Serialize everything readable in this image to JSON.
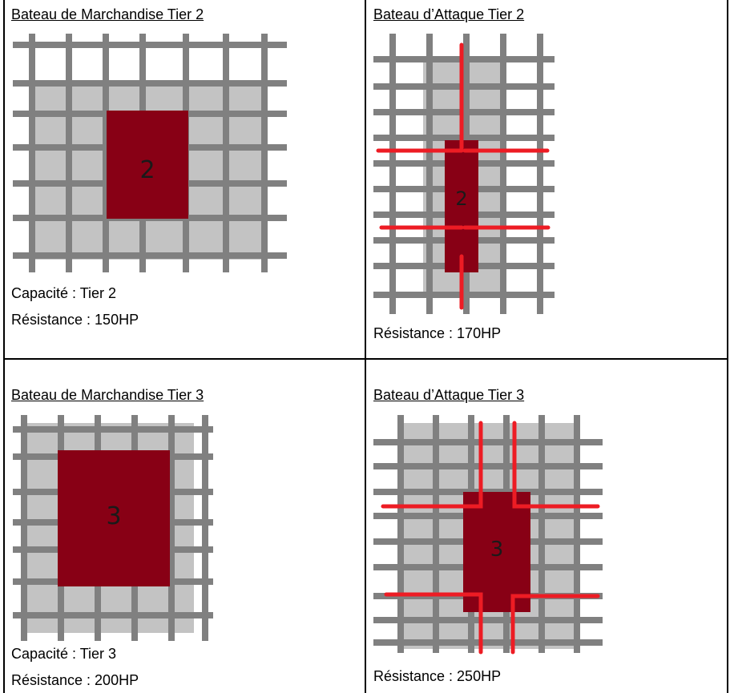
{
  "cells": [
    {
      "id": "merchant-t2",
      "title": "Bateau de Marchandise Tier 2",
      "number": "2",
      "stats": [
        "Capacité : Tier 2",
        "Résistance : 150HP"
      ]
    },
    {
      "id": "attack-t2",
      "title": "Bateau d’Attaque Tier 2",
      "number": "2",
      "stats": [
        "Résistance : 170HP"
      ]
    },
    {
      "id": "merchant-t3",
      "title": "Bateau de Marchandise Tier 3",
      "number": "3",
      "stats": [
        "Capacité : Tier 3",
        "Résistance : 200HP"
      ]
    },
    {
      "id": "attack-t3",
      "title": "Bateau d’Attaque Tier 3",
      "number": "3",
      "stats": [
        "Résistance : 250HP"
      ]
    }
  ],
  "colors": {
    "grid_line": "#808080",
    "footprint": "#c3c3c3",
    "hull": "#880015",
    "cannon": "#ed1c24",
    "border": "#000000"
  }
}
